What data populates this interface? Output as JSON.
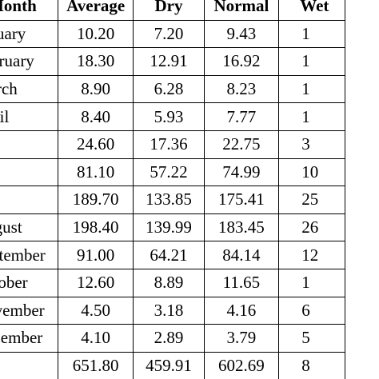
{
  "table": {
    "headers": {
      "month": "Month",
      "average": "Average",
      "dry": "Dry",
      "normal": "Normal",
      "wet": "Wet"
    },
    "rows": [
      {
        "month": "January",
        "average": "10.20",
        "dry": "7.20",
        "normal": "9.43",
        "wet": "1"
      },
      {
        "month": "February",
        "average": "18.30",
        "dry": "12.91",
        "normal": "16.92",
        "wet": "1"
      },
      {
        "month": "March",
        "average": "8.90",
        "dry": "6.28",
        "normal": "8.23",
        "wet": "1"
      },
      {
        "month": "April",
        "average": "8.40",
        "dry": "5.93",
        "normal": "7.77",
        "wet": "1"
      },
      {
        "month": "",
        "average": "24.60",
        "dry": "17.36",
        "normal": "22.75",
        "wet": "3"
      },
      {
        "month": "",
        "average": "81.10",
        "dry": "57.22",
        "normal": "74.99",
        "wet": "10"
      },
      {
        "month": "",
        "average": "189.70",
        "dry": "133.85",
        "normal": "175.41",
        "wet": "25"
      },
      {
        "month": "August",
        "average": "198.40",
        "dry": "139.99",
        "normal": "183.45",
        "wet": "26"
      },
      {
        "month": "September",
        "average": "91.00",
        "dry": "64.21",
        "normal": "84.14",
        "wet": "12"
      },
      {
        "month": "October",
        "average": "12.60",
        "dry": "8.89",
        "normal": "11.65",
        "wet": "1"
      },
      {
        "month": "November",
        "average": "4.50",
        "dry": "3.18",
        "normal": "4.16",
        "wet": "6"
      },
      {
        "month": "December",
        "average": "4.10",
        "dry": "2.89",
        "normal": "3.79",
        "wet": "5"
      },
      {
        "month": "",
        "average": "651.80",
        "dry": "459.91",
        "normal": "602.69",
        "wet": "8"
      }
    ]
  }
}
